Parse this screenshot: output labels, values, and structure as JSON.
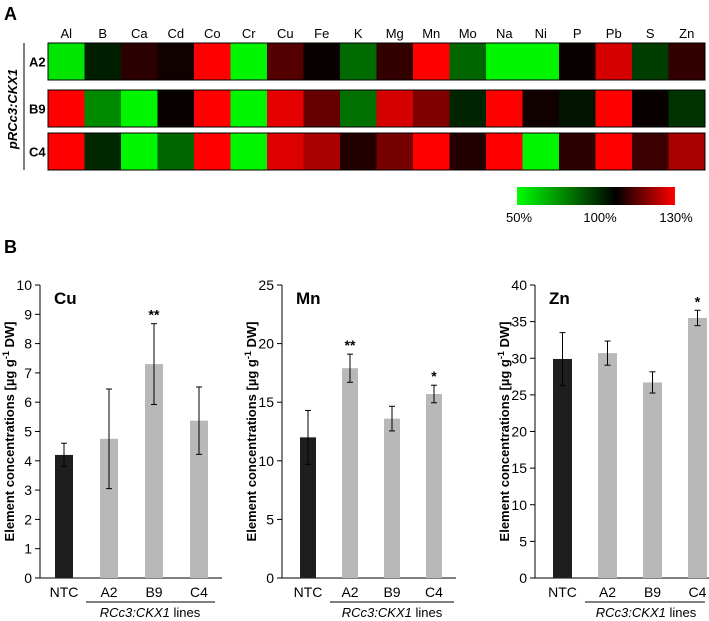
{
  "panel_a": {
    "label": "A",
    "genotype_label": "pRCc3:CKX1",
    "colorbar": {
      "labels": [
        "50%",
        "100%",
        "130%"
      ],
      "stops": [
        "#00ff00",
        "#000000",
        "#ff0000"
      ]
    }
  },
  "panel_b": {
    "label": "B",
    "xaxis_group_label_italic": "RCc3:CKX1",
    "xaxis_group_label_rest": " lines",
    "ylabel_main": "Element concentrations [µg g",
    "ylabel_sup": "-1",
    "ylabel_end": " DW]"
  },
  "colors": {
    "ntc_bar": "#1e1e1e",
    "line_bar": "#b8b8b8"
  },
  "chart_data": [
    {
      "type": "heatmap",
      "title": "",
      "columns": [
        "Al",
        "B",
        "Ca",
        "Cd",
        "Co",
        "Cr",
        "Cu",
        "Fe",
        "K",
        "Mg",
        "Mn",
        "Mo",
        "Na",
        "Ni",
        "P",
        "Pb",
        "S",
        "Zn"
      ],
      "rows": [
        "A2",
        "B9",
        "C4"
      ],
      "scale": {
        "min": 50,
        "mid": 100,
        "max": 130,
        "unit": "%"
      },
      "values": [
        [
          55,
          94,
          105,
          102,
          130,
          52,
          110,
          101,
          79,
          106,
          130,
          80,
          52,
          52,
          101,
          125,
          88,
          106
        ],
        [
          130,
          73,
          52,
          101,
          130,
          52,
          127,
          112,
          78,
          125,
          115,
          93,
          130,
          102,
          96,
          130,
          101,
          90
        ],
        [
          130,
          92,
          52,
          80,
          130,
          52,
          126,
          120,
          104,
          114,
          130,
          104,
          130,
          52,
          105,
          130,
          107,
          120
        ]
      ]
    },
    {
      "type": "bar",
      "title": "Cu",
      "categories": [
        "NTC",
        "A2",
        "B9",
        "C4"
      ],
      "values": [
        4.2,
        4.75,
        7.3,
        5.37
      ],
      "errors": [
        0.4,
        1.7,
        1.38,
        1.15
      ],
      "significance": [
        "",
        "",
        "**",
        ""
      ],
      "ylim": [
        0,
        10
      ],
      "yticks": [
        0,
        1,
        2,
        3,
        4,
        5,
        6,
        7,
        8,
        9,
        10
      ],
      "ylabel": "Element concentrations [µg g-1 DW]",
      "xlabel": "RCc3:CKX1 lines"
    },
    {
      "type": "bar",
      "title": "Mn",
      "categories": [
        "NTC",
        "A2",
        "B9",
        "C4"
      ],
      "values": [
        12.0,
        17.9,
        13.6,
        15.7
      ],
      "errors": [
        2.3,
        1.2,
        1.05,
        0.75
      ],
      "significance": [
        "",
        "**",
        "",
        "*"
      ],
      "ylim": [
        0,
        25
      ],
      "yticks": [
        0,
        5,
        10,
        15,
        20,
        25
      ],
      "ylabel": "Element concentrations [µg g-1 DW]",
      "xlabel": "RCc3:CKX1 lines"
    },
    {
      "type": "bar",
      "title": "Zn",
      "categories": [
        "NTC",
        "A2",
        "B9",
        "C4"
      ],
      "values": [
        29.9,
        30.7,
        26.7,
        35.5
      ],
      "errors": [
        3.6,
        1.65,
        1.45,
        1.05
      ],
      "significance": [
        "",
        "",
        "",
        "*"
      ],
      "ylim": [
        0,
        40
      ],
      "yticks": [
        0,
        5,
        10,
        15,
        20,
        25,
        30,
        35,
        40
      ],
      "ylabel": "Element concentrations [µg g-1 DW]",
      "xlabel": "RCc3:CKX1 lines"
    }
  ]
}
